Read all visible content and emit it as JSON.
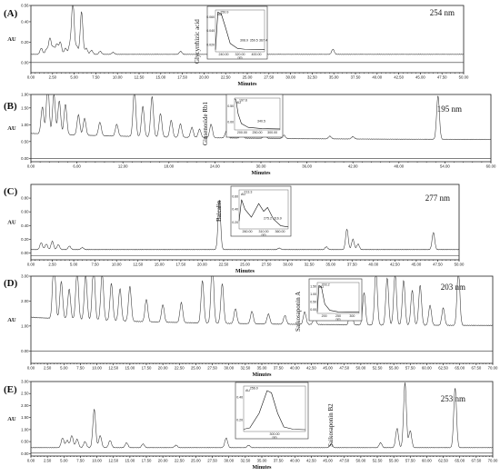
{
  "chart_data": [
    {
      "type": "line",
      "panel_label": "(A)",
      "wavelength": "254 nm",
      "compound": "Glycyrrhizic acid",
      "ylabel": "AU",
      "xlabel": "Minutes",
      "xlim": [
        0,
        50
      ],
      "ylim": [
        -0.1,
        0.56
      ],
      "x_ticks": [
        "0.00",
        "2.50",
        "5.00",
        "7.50",
        "10.00",
        "12.50",
        "15.00",
        "17.50",
        "20.00",
        "22.50",
        "25.00",
        "27.50",
        "30.00",
        "32.50",
        "35.00",
        "37.50",
        "40.00",
        "42.50",
        "45.00",
        "47.50",
        "50.00"
      ],
      "y_ticks": [
        "0.56",
        "0.40",
        "0.20",
        "0.00"
      ],
      "peaks": [
        {
          "t": 1.2,
          "h": 0.06
        },
        {
          "t": 1.8,
          "h": 0.05
        },
        {
          "t": 2.2,
          "h": 0.16
        },
        {
          "t": 2.6,
          "h": 0.07
        },
        {
          "t": 3.0,
          "h": 0.1
        },
        {
          "t": 3.4,
          "h": 0.12
        },
        {
          "t": 4.0,
          "h": 0.06
        },
        {
          "t": 4.5,
          "h": 0.09
        },
        {
          "t": 4.85,
          "h": 0.52
        },
        {
          "t": 5.3,
          "h": 0.08
        },
        {
          "t": 5.85,
          "h": 0.42
        },
        {
          "t": 6.4,
          "h": 0.06
        },
        {
          "t": 7.0,
          "h": 0.04
        },
        {
          "t": 8.0,
          "h": 0.03
        },
        {
          "t": 9.5,
          "h": 0.02
        },
        {
          "t": 17.3,
          "h": 0.03
        },
        {
          "t": 34.9,
          "h": 0.05
        }
      ],
      "baseline": 0.08,
      "second_trace_baseline": 0.0,
      "inset": {
        "x_ticks": [
          "240.00",
          "320.00",
          "400.00"
        ],
        "y_ticks": [
          "0.060",
          "0.040",
          "0.020"
        ],
        "ylabel": "AU",
        "xlabel": "nm",
        "peak_labels": [
          "250.9",
          "308.9",
          "359.5",
          "367.4"
        ]
      }
    },
    {
      "type": "line",
      "panel_label": "(B)",
      "wavelength": "195 nm",
      "compound": "Ginsenoside Rb1",
      "ylabel": "AU",
      "xlabel": "Minutes",
      "xlim": [
        0,
        60
      ],
      "ylim": [
        -0.1,
        1.9
      ],
      "x_ticks": [
        "0.00",
        "6.00",
        "12.00",
        "18.00",
        "24.00",
        "30.00",
        "36.00",
        "42.00",
        "48.00",
        "54.00",
        "60.00"
      ],
      "y_ticks": [
        "1.90",
        "1.50",
        "1.00",
        "0.50",
        "0.00"
      ],
      "peaks": [
        {
          "t": 1.5,
          "h": 0.8
        },
        {
          "t": 2.2,
          "h": 1.5
        },
        {
          "t": 3.0,
          "h": 1.2
        },
        {
          "t": 3.7,
          "h": 1.0
        },
        {
          "t": 4.5,
          "h": 0.9
        },
        {
          "t": 6.2,
          "h": 0.6
        },
        {
          "t": 7.0,
          "h": 0.5
        },
        {
          "t": 9.0,
          "h": 0.4
        },
        {
          "t": 11.2,
          "h": 0.35
        },
        {
          "t": 13.5,
          "h": 1.4
        },
        {
          "t": 14.6,
          "h": 0.9
        },
        {
          "t": 15.8,
          "h": 1.2
        },
        {
          "t": 16.9,
          "h": 0.7
        },
        {
          "t": 18.3,
          "h": 0.5
        },
        {
          "t": 19.5,
          "h": 0.4
        },
        {
          "t": 21.0,
          "h": 0.3
        },
        {
          "t": 22.0,
          "h": 0.25
        },
        {
          "t": 23.5,
          "h": 0.4
        },
        {
          "t": 25.5,
          "h": 0.2
        },
        {
          "t": 27.5,
          "h": 0.15
        },
        {
          "t": 30.5,
          "h": 0.1
        },
        {
          "t": 33.0,
          "h": 0.1
        },
        {
          "t": 39.0,
          "h": 0.08
        },
        {
          "t": 42.0,
          "h": 0.07
        },
        {
          "t": 53.1,
          "h": 1.3
        }
      ],
      "baseline": 0.55,
      "second_trace_baseline": 0.0,
      "inset": {
        "x_ticks": [
          "200.00",
          "250.00",
          "300.00"
        ],
        "y_ticks": [
          "0.50",
          "0.00"
        ],
        "ylabel": "AU",
        "xlabel": "",
        "peak_labels": [
          "197.6",
          "340.5"
        ]
      }
    },
    {
      "type": "line",
      "panel_label": "(C)",
      "wavelength": "277 nm",
      "compound": "Baicalin",
      "ylabel": "AU",
      "xlabel": "Minutes",
      "xlim": [
        0,
        50
      ],
      "ylim": [
        -0.1,
        1.0
      ],
      "x_ticks": [
        "0.00",
        "2.50",
        "5.00",
        "7.50",
        "10.00",
        "12.50",
        "15.00",
        "17.50",
        "20.00",
        "22.50",
        "25.00",
        "27.50",
        "30.00",
        "32.50",
        "35.00",
        "37.50",
        "40.00",
        "42.50",
        "45.00",
        "47.50",
        "50.00"
      ],
      "y_ticks": [
        "0.80",
        "0.60",
        "0.40",
        "0.20",
        "0.00"
      ],
      "peaks": [
        {
          "t": 1.2,
          "h": 0.1
        },
        {
          "t": 1.8,
          "h": 0.08
        },
        {
          "t": 2.5,
          "h": 0.12
        },
        {
          "t": 3.2,
          "h": 0.07
        },
        {
          "t": 4.5,
          "h": 0.05
        },
        {
          "t": 6.0,
          "h": 0.03
        },
        {
          "t": 22.0,
          "h": 0.72
        },
        {
          "t": 29.0,
          "h": 0.02
        },
        {
          "t": 34.5,
          "h": 0.04
        },
        {
          "t": 36.9,
          "h": 0.3
        },
        {
          "t": 37.6,
          "h": 0.15
        },
        {
          "t": 38.2,
          "h": 0.08
        },
        {
          "t": 47.0,
          "h": 0.25
        }
      ],
      "baseline": 0.05,
      "second_trace_baseline": -0.04,
      "inset": {
        "x_ticks": [
          "260.00",
          "310.00",
          "360.00"
        ],
        "y_ticks": [
          "0.60",
          "0.40",
          "0.20"
        ],
        "ylabel": "AU",
        "xlabel": "nm",
        "peak_labels": [
          "213.3",
          "275.2",
          "316.9"
        ]
      }
    },
    {
      "type": "line",
      "panel_label": "(D)",
      "wavelength": "203 nm",
      "compound": "Saikosaponin A",
      "ylabel": "AU",
      "xlabel": "Minutes",
      "xlim": [
        0,
        70
      ],
      "ylim": [
        -0.5,
        3.0
      ],
      "x_ticks": [
        "0.00",
        "2.50",
        "5.00",
        "7.50",
        "10.00",
        "12.50",
        "15.00",
        "17.50",
        "20.00",
        "22.50",
        "25.00",
        "27.50",
        "30.00",
        "32.50",
        "35.00",
        "37.50",
        "40.00",
        "42.50",
        "45.00",
        "47.50",
        "50.00",
        "52.50",
        "55.00",
        "57.50",
        "60.00",
        "62.50",
        "65.00",
        "67.50",
        "70.00"
      ],
      "y_ticks": [
        "3.00",
        "2.00",
        "1.00",
        "0.00"
      ],
      "peaks": [
        {
          "t": 3.5,
          "h": 2.6
        },
        {
          "t": 4.6,
          "h": 1.5
        },
        {
          "t": 5.8,
          "h": 1.2
        },
        {
          "t": 7.0,
          "h": 2.0
        },
        {
          "t": 8.3,
          "h": 1.8
        },
        {
          "t": 9.5,
          "h": 2.2
        },
        {
          "t": 10.8,
          "h": 1.9
        },
        {
          "t": 12.2,
          "h": 1.5
        },
        {
          "t": 13.5,
          "h": 1.3
        },
        {
          "t": 15.0,
          "h": 1.4
        },
        {
          "t": 17.5,
          "h": 0.9
        },
        {
          "t": 20.0,
          "h": 0.7
        },
        {
          "t": 22.8,
          "h": 0.8
        },
        {
          "t": 26.0,
          "h": 1.7
        },
        {
          "t": 27.5,
          "h": 2.5
        },
        {
          "t": 29.0,
          "h": 1.6
        },
        {
          "t": 31.0,
          "h": 0.6
        },
        {
          "t": 33.5,
          "h": 0.5
        },
        {
          "t": 36.0,
          "h": 0.4
        },
        {
          "t": 38.5,
          "h": 0.35
        },
        {
          "t": 41.5,
          "h": 0.5
        },
        {
          "t": 43.0,
          "h": 0.3
        },
        {
          "t": 48.5,
          "h": 0.9
        },
        {
          "t": 50.5,
          "h": 1.3
        },
        {
          "t": 52.3,
          "h": 2.2
        },
        {
          "t": 54.0,
          "h": 1.9
        },
        {
          "t": 55.2,
          "h": 2.1
        },
        {
          "t": 56.5,
          "h": 1.8
        },
        {
          "t": 57.8,
          "h": 1.4
        },
        {
          "t": 59.0,
          "h": 1.6
        },
        {
          "t": 60.5,
          "h": 0.8
        },
        {
          "t": 62.5,
          "h": 0.7
        },
        {
          "t": 64.8,
          "h": 2.3
        }
      ],
      "baseline": 1.0,
      "second_trace_baseline": 0.0,
      "inset": {
        "x_ticks": [
          "200",
          "250",
          "300"
        ],
        "y_ticks": [
          "1.50",
          "1.00",
          "0.50",
          "0.00"
        ],
        "ylabel": "AU",
        "xlabel": "nm",
        "peak_labels": [
          "203.2"
        ]
      }
    },
    {
      "type": "line",
      "panel_label": "(E)",
      "wavelength": "253 nm",
      "compound": "Saikosaponin B2",
      "ylabel": "AU",
      "xlabel": "Minutes",
      "xlim": [
        0,
        70
      ],
      "ylim": [
        -0.1,
        3.0
      ],
      "x_ticks": [
        "0.00",
        "2.50",
        "5.00",
        "7.50",
        "10.00",
        "12.50",
        "15.00",
        "17.50",
        "20.00",
        "22.50",
        "25.00",
        "27.50",
        "30.00",
        "32.50",
        "35.00",
        "37.50",
        "40.00",
        "42.50",
        "45.00",
        "47.50",
        "50.00",
        "52.50",
        "55.00",
        "57.50",
        "60.00",
        "62.50",
        "65.00",
        "67.50",
        "70.00"
      ],
      "y_ticks": [
        "3.00",
        "2.50",
        "2.00",
        "1.50",
        "1.00",
        "0.50",
        "0.00"
      ],
      "peaks": [
        {
          "t": 4.8,
          "h": 0.4
        },
        {
          "t": 5.5,
          "h": 0.3
        },
        {
          "t": 6.2,
          "h": 0.5
        },
        {
          "t": 7.0,
          "h": 0.35
        },
        {
          "t": 8.2,
          "h": 0.25
        },
        {
          "t": 9.6,
          "h": 1.6
        },
        {
          "t": 10.5,
          "h": 0.5
        },
        {
          "t": 12.0,
          "h": 0.3
        },
        {
          "t": 14.5,
          "h": 0.2
        },
        {
          "t": 17.0,
          "h": 0.15
        },
        {
          "t": 22.0,
          "h": 0.1
        },
        {
          "t": 29.6,
          "h": 0.4
        },
        {
          "t": 33.0,
          "h": 0.1
        },
        {
          "t": 45.5,
          "h": 0.15
        },
        {
          "t": 53.0,
          "h": 0.2
        },
        {
          "t": 55.5,
          "h": 0.8
        },
        {
          "t": 56.7,
          "h": 2.7
        },
        {
          "t": 57.5,
          "h": 0.7
        },
        {
          "t": 64.3,
          "h": 2.5
        }
      ],
      "baseline": 0.25,
      "second_trace_baseline": 0.02,
      "inset": {
        "x_ticks": [
          "300.00"
        ],
        "y_ticks": [
          "0.40",
          "0.20"
        ],
        "ylabel": "AU",
        "xlabel": "nm",
        "peak_labels": [
          "256.0"
        ]
      }
    }
  ]
}
